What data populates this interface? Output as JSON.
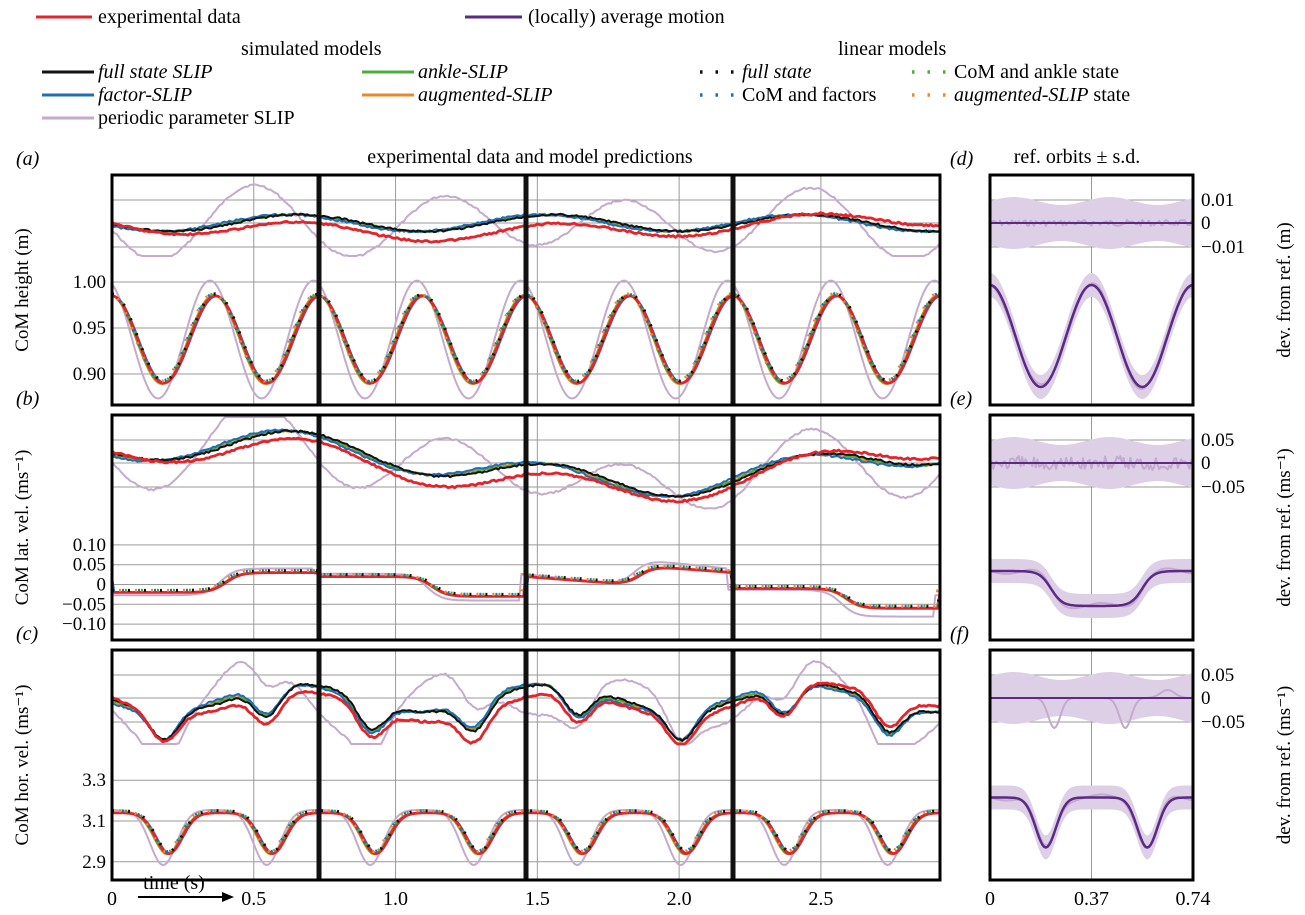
{
  "legend": {
    "top_row": [
      {
        "label": "experimental data",
        "color": "#e3242b"
      },
      {
        "label": "(locally) average motion",
        "color": "#5b2a86"
      }
    ],
    "simulated_title": "simulated models",
    "linear_title": "linear models",
    "simulated": [
      {
        "label": "full state SLIP",
        "color": "#111111",
        "italic": true
      },
      {
        "label": "ankle-SLIP",
        "color": "#4caf35",
        "italic": true
      },
      {
        "label": "factor-SLIP",
        "color": "#1f6fb5",
        "italic": true
      },
      {
        "label": "augmented-SLIP",
        "color": "#e8892b",
        "italic": true
      },
      {
        "label": "periodic parameter SLIP",
        "color": "#c4aacd",
        "italic": false
      }
    ],
    "linear": [
      {
        "label": "full state",
        "color": "#111111",
        "italic": true
      },
      {
        "label": "CoM and ankle state",
        "color": "#4caf35",
        "italic": false
      },
      {
        "label": "CoM and factors",
        "color": "#1f6fb5",
        "italic": false
      },
      {
        "label": "augmented-SLIP",
        "suffix": " state",
        "color": "#e8892b",
        "italic": true
      }
    ]
  },
  "headings": {
    "main": "experimental data and model predictions",
    "side": "ref. orbits ± s.d."
  },
  "panel_letters": {
    "a": "(a)",
    "b": "(b)",
    "c": "(c)",
    "d": "(d)",
    "e": "(e)",
    "f": "(f)"
  },
  "colors": {
    "experimental": "#e3242b",
    "full_state": "#111111",
    "ankle": "#4caf35",
    "factor": "#1f6fb5",
    "augmented": "#e8892b",
    "periodic": "#c4aacd",
    "average": "#5b2a86",
    "band": "#ddd0e6"
  },
  "chart_data": [
    {
      "type": "line",
      "panel": "a",
      "ylabel": "CoM height (m)",
      "xlim": [
        0,
        2.92
      ],
      "y_ticks_lower": [
        "1.00",
        "0.95",
        "0.90"
      ],
      "lower_ylim": [
        0.875,
        1.0
      ],
      "step_boundaries": [
        0.73,
        1.46,
        2.19
      ],
      "lower_curve": {
        "period": 0.73,
        "mean": 0.9375,
        "amplitude": 0.0475
      }
    },
    {
      "type": "line",
      "panel": "b",
      "ylabel": "CoM lat. vel. (ms⁻¹)",
      "xlim": [
        0,
        2.92
      ],
      "y_ticks_lower": [
        "0.10",
        "0.05",
        "0",
        "−0.05",
        "−0.10"
      ],
      "lower_ylim": [
        -0.12,
        0.12
      ]
    },
    {
      "type": "line",
      "panel": "c",
      "ylabel": "CoM hor. vel. (ms⁻¹)",
      "xlim": [
        0,
        2.92
      ],
      "y_ticks_lower": [
        "3.3",
        "3.1",
        "2.9"
      ],
      "lower_ylim": [
        2.85,
        3.35
      ],
      "x_ticks": [
        "0",
        "0.5",
        "1.0",
        "1.5",
        "2.0",
        "2.5"
      ],
      "x_tick_values": [
        0,
        0.5,
        1.0,
        1.5,
        2.0,
        2.5
      ],
      "xlabel": "time (s)"
    },
    {
      "type": "line",
      "panel": "d",
      "ylabel": "dev. from ref. (m)",
      "y_ticks": [
        "0.01",
        "0",
        "−0.01"
      ]
    },
    {
      "type": "line",
      "panel": "e",
      "ylabel": "dev. from ref. (ms⁻¹)",
      "y_ticks": [
        "0.05",
        "0",
        "−0.05"
      ]
    },
    {
      "type": "line",
      "panel": "f",
      "ylabel": "dev. from ref. (ms⁻¹)",
      "y_ticks": [
        "0.05",
        "0",
        "−0.05"
      ],
      "x_ticks": [
        "0",
        "0.37",
        "0.74"
      ],
      "x_tick_values": [
        0,
        0.37,
        0.74
      ]
    }
  ]
}
